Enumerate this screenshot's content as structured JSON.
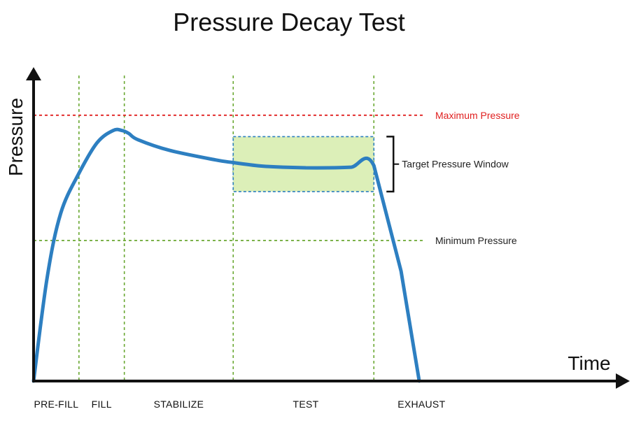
{
  "chart_data": {
    "type": "line",
    "title": "Pressure Decay Test",
    "xlabel": "Time",
    "ylabel": "Pressure",
    "xlim": [
      0,
      12
    ],
    "ylim": [
      0,
      100
    ],
    "grid": false,
    "phase_boundaries": [
      1,
      2,
      4.4,
      7.5
    ],
    "phases": [
      {
        "label": "PRE-FILL",
        "center": 0.5
      },
      {
        "label": "FILL",
        "center": 1.5
      },
      {
        "label": "STABILIZE",
        "center": 3.2
      },
      {
        "label": "TEST",
        "center": 6.0
      },
      {
        "label": "EXHAUST",
        "center": 8.55
      }
    ],
    "thresholds": [
      {
        "label": "Maximum Pressure",
        "value": 87,
        "color": "#e02020"
      },
      {
        "label": "Minimum Pressure",
        "value": 46,
        "color": "#6aa832"
      }
    ],
    "window": {
      "label": "Target Pressure Window",
      "x": [
        4.4,
        7.5
      ],
      "y": [
        62,
        80
      ],
      "fill": "#dcefb8",
      "border": "#2d7fc1"
    },
    "series": [
      {
        "color": "#2d7fc1",
        "x": [
          0,
          0.3,
          0.6,
          1.0,
          1.4,
          1.75,
          1.95,
          2.1,
          2.3,
          3.0,
          4.0,
          4.4,
          5.0,
          5.5,
          6.0,
          6.5,
          7.0,
          7.5,
          8.1,
          8.5
        ],
        "y": [
          0,
          34,
          55,
          68,
          78,
          82,
          82,
          81,
          79,
          75.5,
          72.4,
          71.5,
          70.4,
          70,
          69.8,
          69.8,
          70,
          70.5,
          36,
          0
        ]
      }
    ],
    "colors": {
      "axis": "#111111",
      "phase_line": "#6aa832",
      "curve": "#2d7fc1"
    }
  }
}
